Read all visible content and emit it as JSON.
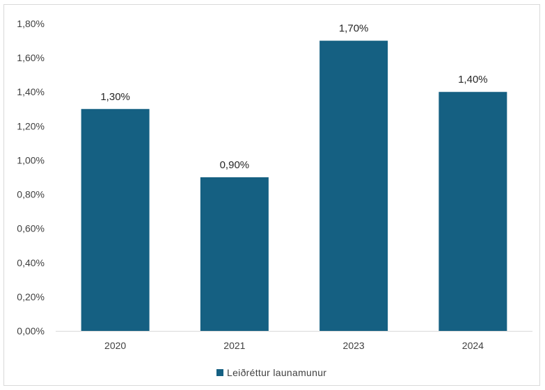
{
  "chart_data": {
    "type": "bar",
    "categories": [
      "2020",
      "2021",
      "2023",
      "2024"
    ],
    "series": [
      {
        "name": "Leiðréttur launamunur",
        "values": [
          1.3,
          0.9,
          1.7,
          1.4
        ],
        "labels": [
          "1,30%",
          "0,90%",
          "1,70%",
          "1,40%"
        ],
        "color": "#156082"
      }
    ],
    "ylim": [
      0,
      1.8
    ],
    "yticks": [
      0,
      0.2,
      0.4,
      0.6,
      0.8,
      1.0,
      1.2,
      1.4,
      1.6,
      1.8
    ],
    "ytick_labels": [
      "0,00%",
      "0,20%",
      "0,40%",
      "0,60%",
      "0,80%",
      "1,00%",
      "1,20%",
      "1,40%",
      "1,60%",
      "1,80%"
    ],
    "grid": false,
    "legend_position": "bottom",
    "colors": {
      "bar": "#156082",
      "axis": "#d9d9d9",
      "text": "#404040"
    }
  }
}
